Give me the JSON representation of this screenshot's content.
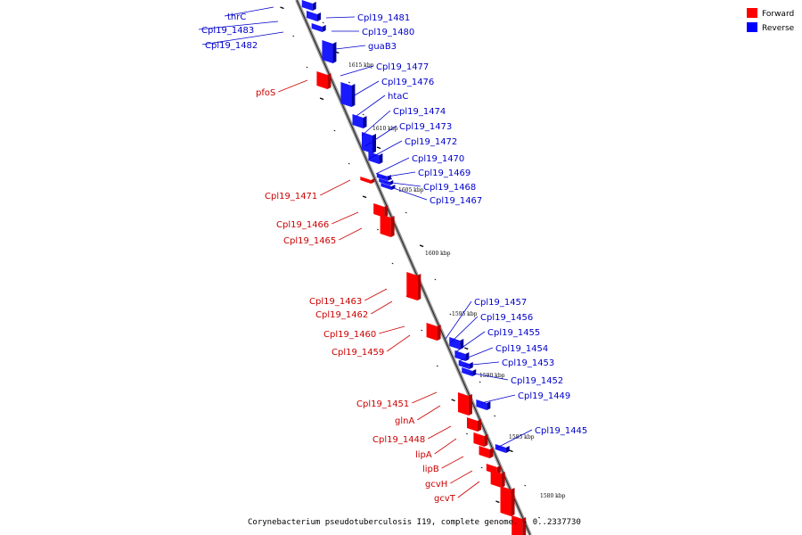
{
  "caption": "Corynebacterium pseudotuberculosis I19, complete genome. - 0..2337730",
  "legend": [
    {
      "label": "Forward",
      "color": "#ff0000"
    },
    {
      "label": "Reverse",
      "color": "#0000ff"
    }
  ],
  "ticks": [
    "1615 kbp",
    "1610 kbp",
    "1605 kbp",
    "1600 kbp",
    "1595 kbp",
    "1590 kbp",
    "1585 kbp",
    "1580 kbp"
  ],
  "genes_reverse": [
    "thrC",
    "Cpl19_1483",
    "Cpl19_1482",
    "Cpl19_1481",
    "Cpl19_1480",
    "guaB3",
    "Cpl19_1477",
    "Cpl19_1476",
    "htaC",
    "Cpl19_1474",
    "Cpl19_1473",
    "Cpl19_1472",
    "Cpl19_1470",
    "Cpl19_1469",
    "Cpl19_1468",
    "Cpl19_1467",
    "Cpl19_1457",
    "Cpl19_1456",
    "Cpl19_1455",
    "Cpl19_1454",
    "Cpl19_1453",
    "Cpl19_1452",
    "Cpl19_1449",
    "Cpl19_1445"
  ],
  "genes_forward": [
    "pfoS",
    "Cpl19_1471",
    "Cpl19_1466",
    "Cpl19_1465",
    "Cpl19_1463",
    "Cpl19_1462",
    "Cpl19_1460",
    "Cpl19_1459",
    "Cpl19_1451",
    "glnA",
    "Cpl19_1448",
    "lipA",
    "lipB",
    "gcvH",
    "gcvT"
  ]
}
